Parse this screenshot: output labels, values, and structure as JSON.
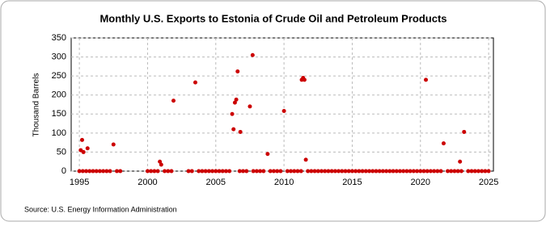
{
  "chart_data": {
    "type": "scatter",
    "title": "Monthly U.S. Exports to Estonia of Crude Oil and Petroleum Products",
    "y_label": "Thousand Barrels",
    "source": "Source: U.S. Energy Information Administration",
    "color": "#cc0000",
    "grid": true,
    "x": [
      1995,
      1995.25,
      1995.5,
      1995.75,
      1996,
      1996.25,
      1996.5,
      1996.75,
      1997,
      1997.25,
      1997.75,
      1998,
      2000,
      2000.25,
      2000.5,
      2000.75,
      2001.25,
      2001.5,
      2001.75,
      2003,
      2003.25,
      2003.75,
      2004,
      2004.25,
      2004.5,
      2004.75,
      2005,
      2005.25,
      2005.5,
      2005.75,
      2006,
      2006.75,
      2007,
      2007.25,
      2007.75,
      2008,
      2008.25,
      2008.5,
      2009,
      2009.25,
      2009.5,
      2009.75,
      2010.25,
      2010.5,
      2010.75,
      2011,
      2011.25,
      2011.75,
      2012,
      2012.25,
      2012.5,
      2012.75,
      2013,
      2013.25,
      2013.5,
      2013.75,
      2014,
      2014.25,
      2014.5,
      2014.75,
      2015,
      2015.25,
      2015.5,
      2015.75,
      2016,
      2016.25,
      2016.5,
      2016.75,
      2017,
      2017.25,
      2017.5,
      2017.75,
      2018,
      2018.25,
      2018.5,
      2018.75,
      2019,
      2019.25,
      2019.5,
      2019.75,
      2020,
      2020.25,
      2020.5,
      2020.75,
      2021,
      2021.25,
      2021.5,
      2022,
      2022.25,
      2022.5,
      2022.75,
      2023,
      2023.5,
      2023.75,
      2024,
      2024.25,
      2024.5,
      2024.75,
      2025,
      1995.1,
      1995.2,
      1995.3,
      1995.6,
      1997.5,
      2000.9,
      2001.0,
      2001.9,
      2003.5,
      2006.2,
      2006.3,
      2006.4,
      2006.5,
      2006.6,
      2006.8,
      2007.5,
      2007.7,
      2008.8,
      2010.0,
      2011.3,
      2011.4,
      2011.5,
      2011.6,
      2020.4,
      2021.7,
      2022.9,
      2023.2
    ],
    "values": [
      0,
      0,
      0,
      0,
      0,
      0,
      0,
      0,
      0,
      0,
      0,
      0,
      0,
      0,
      0,
      0,
      0,
      0,
      0,
      0,
      0,
      0,
      0,
      0,
      0,
      0,
      0,
      0,
      0,
      0,
      0,
      0,
      0,
      0,
      0,
      0,
      0,
      0,
      0,
      0,
      0,
      0,
      0,
      0,
      0,
      0,
      0,
      0,
      0,
      0,
      0,
      0,
      0,
      0,
      0,
      0,
      0,
      0,
      0,
      0,
      0,
      0,
      0,
      0,
      0,
      0,
      0,
      0,
      0,
      0,
      0,
      0,
      0,
      0,
      0,
      0,
      0,
      0,
      0,
      0,
      0,
      0,
      0,
      0,
      0,
      0,
      0,
      0,
      0,
      0,
      0,
      0,
      0,
      0,
      0,
      0,
      0,
      0,
      0,
      55,
      82,
      50,
      60,
      70,
      25,
      17,
      185,
      233,
      150,
      110,
      180,
      188,
      262,
      103,
      170,
      305,
      45,
      158,
      240,
      245,
      240,
      30,
      240,
      73,
      25,
      103
    ],
    "xlim": [
      1994.4,
      2025.35
    ],
    "xticks": [
      1995,
      2000,
      2005,
      2010,
      2015,
      2020,
      2025
    ],
    "ylim": [
      0,
      350
    ],
    "yticks": [
      0,
      50,
      100,
      150,
      200,
      250,
      300,
      350
    ]
  }
}
